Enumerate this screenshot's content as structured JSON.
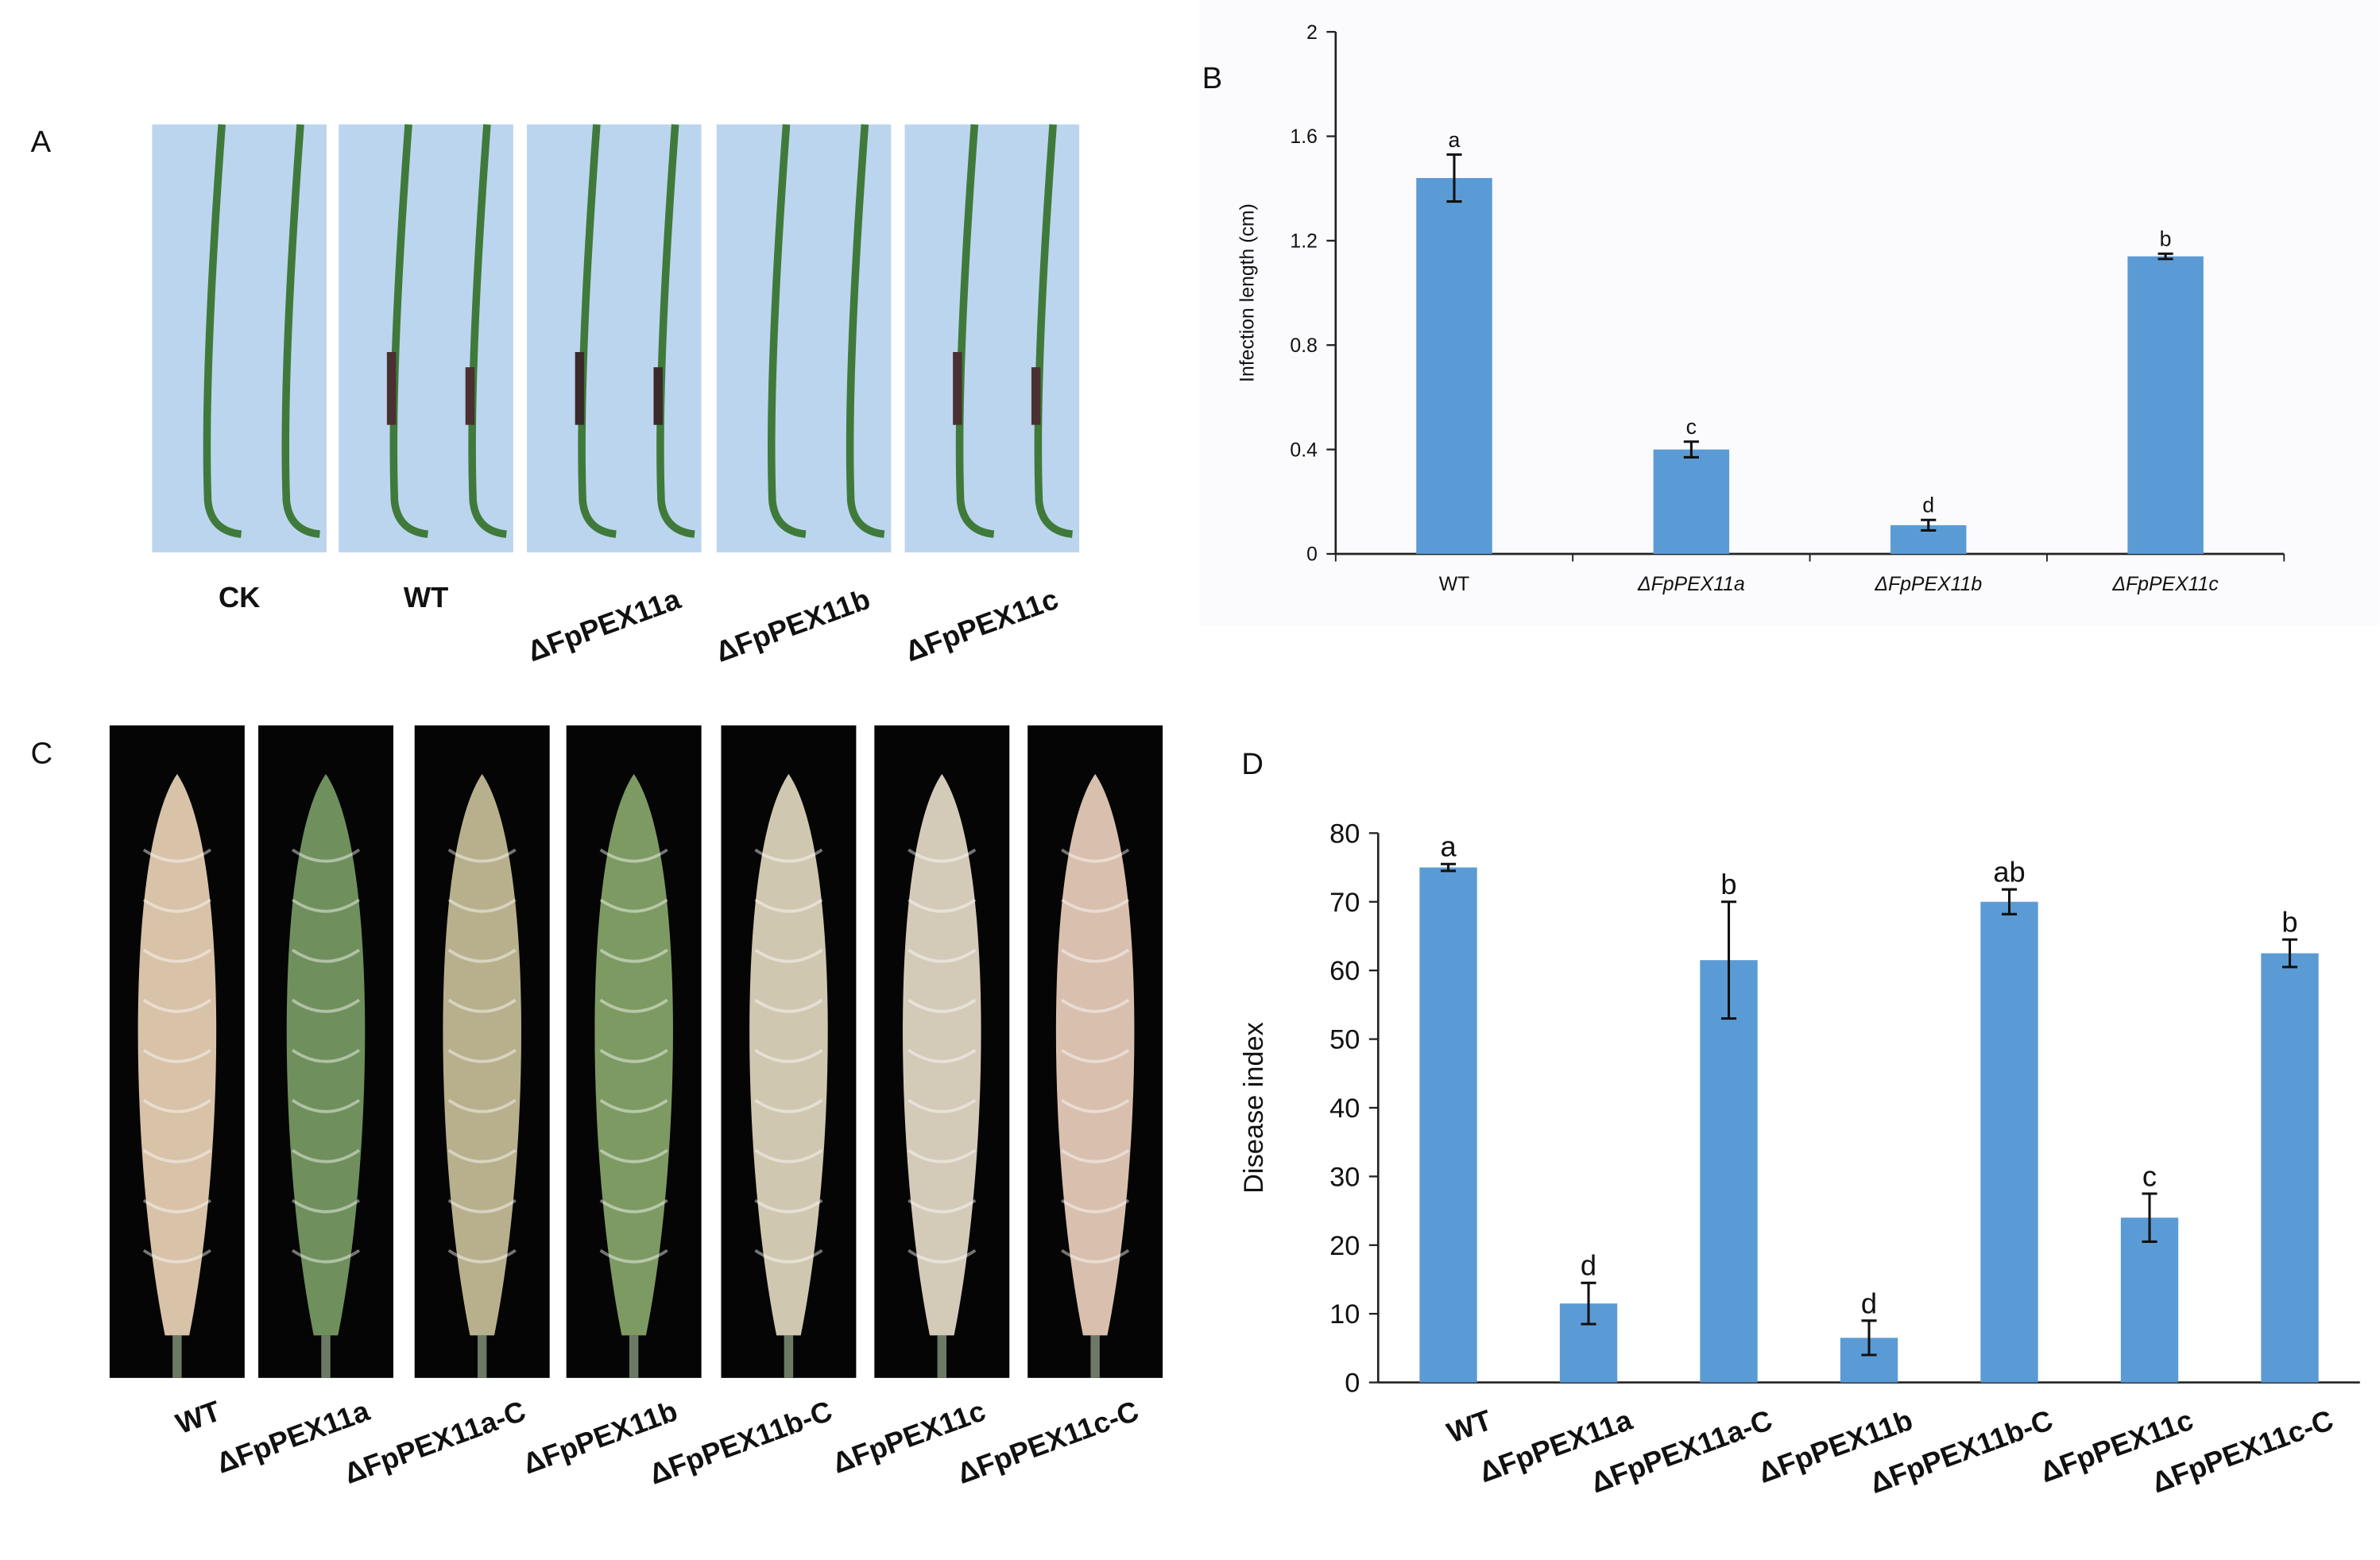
{
  "panel_labels": [
    "A",
    "B",
    "C",
    "D"
  ],
  "photos_a": {
    "labels": [
      "CK",
      "WT",
      "ΔFpPEX11a",
      "ΔFpPEX11b",
      "ΔFpPEX11c"
    ]
  },
  "photos_c": {
    "labels": [
      "WT",
      "ΔFpPEX11a",
      "ΔFpPEX11a-C",
      "ΔFpPEX11b",
      "ΔFpPEX11b-C",
      "ΔFpPEX11c",
      "ΔFpPEX11c-C"
    ]
  },
  "chart_data": [
    {
      "type": "bar",
      "ylabel": "Infection length (cm)",
      "categories": [
        "WT",
        "ΔFpPEX11a",
        "ΔFpPEX11b",
        "ΔFpPEX11c"
      ],
      "values": [
        1.44,
        0.4,
        0.11,
        1.14
      ],
      "errors": [
        0.09,
        0.03,
        0.02,
        0.01
      ],
      "significance": [
        "a",
        "c",
        "d",
        "b"
      ],
      "color": "#5b9bd5",
      "ylim": [
        0,
        2
      ],
      "yticks": [
        0,
        0.4,
        0.8,
        1.2,
        1.6,
        2
      ]
    },
    {
      "type": "bar",
      "ylabel": "Disease index",
      "categories": [
        "WT",
        "ΔFpPEX11a",
        "ΔFpPEX11a-C",
        "ΔFpPEX11b",
        "ΔFpPEX11b-C",
        "ΔFpPEX11c",
        "ΔFpPEX11c-C"
      ],
      "values": [
        75,
        11.5,
        61.5,
        6.5,
        70,
        24,
        62.5
      ],
      "errors": [
        0.5,
        3,
        8.5,
        2.5,
        1.8,
        3.5,
        2
      ],
      "significance": [
        "a",
        "d",
        "b",
        "d",
        "ab",
        "c",
        "b"
      ],
      "color": "#5b9bd5",
      "ylim": [
        0,
        80
      ],
      "yticks": [
        0,
        10,
        20,
        30,
        40,
        50,
        60,
        70,
        80
      ]
    }
  ]
}
